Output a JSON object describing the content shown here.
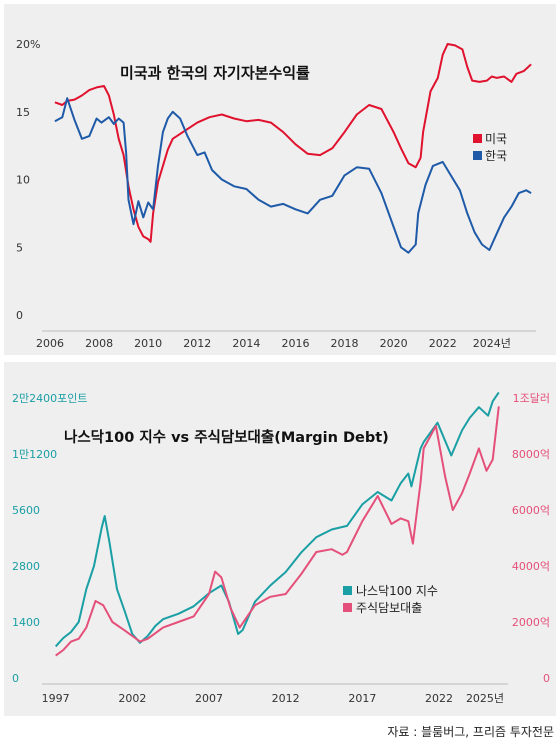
{
  "chart_data": [
    {
      "type": "line",
      "title": "미국과 한국의 자기자본수익률",
      "xlabel": "",
      "ylabel": "",
      "ylim": [
        0,
        20
      ],
      "xlim": [
        2006,
        2025.8
      ],
      "x_tick_labels": [
        "2006",
        "2008",
        "2010",
        "2012",
        "2014",
        "2016",
        "2018",
        "2020",
        "2022",
        "2024년"
      ],
      "y_tick_labels": [
        "0",
        "5",
        "10",
        "15",
        "20%"
      ],
      "legend": "right",
      "grid": false,
      "series": [
        {
          "name": "미국",
          "color": "#e0122e",
          "points": [
            [
              2006.2,
              15.7
            ],
            [
              2006.5,
              15.5
            ],
            [
              2006.7,
              15.8
            ],
            [
              2007.0,
              15.9
            ],
            [
              2007.3,
              16.2
            ],
            [
              2007.6,
              16.6
            ],
            [
              2007.9,
              16.8
            ],
            [
              2008.2,
              16.9
            ],
            [
              2008.4,
              16.2
            ],
            [
              2008.6,
              14.8
            ],
            [
              2008.8,
              13.0
            ],
            [
              2009.0,
              11.8
            ],
            [
              2009.2,
              9.5
            ],
            [
              2009.4,
              7.8
            ],
            [
              2009.6,
              6.5
            ],
            [
              2009.8,
              5.8
            ],
            [
              2010.0,
              5.6
            ],
            [
              2010.1,
              5.4
            ],
            [
              2010.2,
              7.5
            ],
            [
              2010.4,
              9.8
            ],
            [
              2010.6,
              11.0
            ],
            [
              2010.8,
              12.2
            ],
            [
              2011.0,
              13.0
            ],
            [
              2011.5,
              13.6
            ],
            [
              2012.0,
              14.2
            ],
            [
              2012.5,
              14.6
            ],
            [
              2013.0,
              14.8
            ],
            [
              2013.5,
              14.5
            ],
            [
              2014.0,
              14.3
            ],
            [
              2014.5,
              14.4
            ],
            [
              2015.0,
              14.2
            ],
            [
              2015.5,
              13.5
            ],
            [
              2016.0,
              12.6
            ],
            [
              2016.5,
              11.9
            ],
            [
              2017.0,
              11.8
            ],
            [
              2017.5,
              12.3
            ],
            [
              2018.0,
              13.5
            ],
            [
              2018.5,
              14.8
            ],
            [
              2019.0,
              15.5
            ],
            [
              2019.5,
              15.2
            ],
            [
              2020.0,
              13.5
            ],
            [
              2020.3,
              12.3
            ],
            [
              2020.6,
              11.2
            ],
            [
              2020.9,
              10.9
            ],
            [
              2021.1,
              11.6
            ],
            [
              2021.2,
              13.5
            ],
            [
              2021.5,
              16.5
            ],
            [
              2021.8,
              17.5
            ],
            [
              2022.0,
              19.2
            ],
            [
              2022.2,
              20.0
            ],
            [
              2022.5,
              19.9
            ],
            [
              2022.8,
              19.6
            ],
            [
              2023.0,
              18.3
            ],
            [
              2023.2,
              17.3
            ],
            [
              2023.5,
              17.2
            ],
            [
              2023.8,
              17.3
            ],
            [
              2024.0,
              17.6
            ],
            [
              2024.2,
              17.5
            ],
            [
              2024.5,
              17.6
            ],
            [
              2024.8,
              17.2
            ],
            [
              2025.0,
              17.8
            ],
            [
              2025.3,
              18.0
            ],
            [
              2025.6,
              18.5
            ]
          ]
        },
        {
          "name": "한국",
          "color": "#1e5aa8",
          "points": [
            [
              2006.2,
              14.3
            ],
            [
              2006.5,
              14.6
            ],
            [
              2006.7,
              16.0
            ],
            [
              2007.0,
              14.4
            ],
            [
              2007.3,
              13.0
            ],
            [
              2007.6,
              13.2
            ],
            [
              2007.9,
              14.5
            ],
            [
              2008.1,
              14.2
            ],
            [
              2008.4,
              14.6
            ],
            [
              2008.6,
              14.1
            ],
            [
              2008.8,
              14.5
            ],
            [
              2009.0,
              14.2
            ],
            [
              2009.1,
              12.0
            ],
            [
              2009.2,
              8.5
            ],
            [
              2009.4,
              6.7
            ],
            [
              2009.6,
              8.4
            ],
            [
              2009.8,
              7.2
            ],
            [
              2010.0,
              8.3
            ],
            [
              2010.2,
              7.8
            ],
            [
              2010.4,
              11.0
            ],
            [
              2010.6,
              13.5
            ],
            [
              2010.8,
              14.5
            ],
            [
              2011.0,
              15.0
            ],
            [
              2011.3,
              14.5
            ],
            [
              2011.6,
              13.2
            ],
            [
              2012.0,
              11.8
            ],
            [
              2012.3,
              12.0
            ],
            [
              2012.6,
              10.7
            ],
            [
              2013.0,
              10.0
            ],
            [
              2013.5,
              9.5
            ],
            [
              2014.0,
              9.3
            ],
            [
              2014.5,
              8.5
            ],
            [
              2015.0,
              8.0
            ],
            [
              2015.5,
              8.2
            ],
            [
              2016.0,
              7.8
            ],
            [
              2016.5,
              7.5
            ],
            [
              2017.0,
              8.5
            ],
            [
              2017.5,
              8.8
            ],
            [
              2018.0,
              10.3
            ],
            [
              2018.5,
              10.9
            ],
            [
              2019.0,
              10.8
            ],
            [
              2019.5,
              9.0
            ],
            [
              2020.0,
              6.5
            ],
            [
              2020.3,
              5.0
            ],
            [
              2020.6,
              4.6
            ],
            [
              2020.9,
              5.2
            ],
            [
              2021.0,
              7.5
            ],
            [
              2021.3,
              9.6
            ],
            [
              2021.6,
              11.0
            ],
            [
              2022.0,
              11.3
            ],
            [
              2022.3,
              10.4
            ],
            [
              2022.7,
              9.2
            ],
            [
              2023.0,
              7.5
            ],
            [
              2023.3,
              6.1
            ],
            [
              2023.6,
              5.2
            ],
            [
              2023.9,
              4.8
            ],
            [
              2024.2,
              6.0
            ],
            [
              2024.5,
              7.2
            ],
            [
              2024.8,
              8.0
            ],
            [
              2025.1,
              9.0
            ],
            [
              2025.4,
              9.2
            ],
            [
              2025.6,
              9.0
            ]
          ]
        }
      ]
    },
    {
      "type": "line",
      "title": "나스닥100 지수 vs 주식담보대출(Margin Debt)",
      "xlabel": "",
      "ylabel": "",
      "xlim": [
        1996.5,
        2026.5
      ],
      "y_left_scale": "log2",
      "y_left_ticks": [
        0,
        1400,
        2800,
        5600,
        11200,
        22400
      ],
      "y_left_tick_labels": [
        "0",
        "1400",
        "2800",
        "5600",
        "1만1200",
        "2만2400포인트"
      ],
      "y_right_ticks": [
        0,
        2000,
        4000,
        6000,
        8000,
        10000
      ],
      "y_right_tick_labels": [
        "0",
        "2000억",
        "4000억",
        "6000억",
        "8000억",
        "1조달러"
      ],
      "x_tick_labels": [
        "1997",
        "2002",
        "2007",
        "2012",
        "2017",
        "2022",
        "2025년"
      ],
      "legend": "right",
      "grid": false,
      "series": [
        {
          "name": "나스닥100 지수",
          "color": "#1a9fa4",
          "axis": "left",
          "points": [
            [
              1997,
              790
            ],
            [
              1997.5,
              1000
            ],
            [
              1998,
              1150
            ],
            [
              1998.5,
              1400
            ],
            [
              1999,
              2100
            ],
            [
              1999.5,
              2800
            ],
            [
              2000,
              4500
            ],
            [
              2000.2,
              5200
            ],
            [
              2000.5,
              3800
            ],
            [
              2001,
              2100
            ],
            [
              2001.5,
              1600
            ],
            [
              2002,
              1100
            ],
            [
              2002.5,
              880
            ],
            [
              2003,
              1050
            ],
            [
              2003.5,
              1300
            ],
            [
              2004,
              1450
            ],
            [
              2005,
              1550
            ],
            [
              2006,
              1700
            ],
            [
              2007,
              2000
            ],
            [
              2007.8,
              2200
            ],
            [
              2008.3,
              1800
            ],
            [
              2008.9,
              1100
            ],
            [
              2009.2,
              1200
            ],
            [
              2010,
              1800
            ],
            [
              2011,
              2200
            ],
            [
              2012,
              2600
            ],
            [
              2013,
              3300
            ],
            [
              2014,
              4000
            ],
            [
              2015,
              4400
            ],
            [
              2016,
              4600
            ],
            [
              2017,
              6000
            ],
            [
              2018,
              7000
            ],
            [
              2018.9,
              6300
            ],
            [
              2019.5,
              7800
            ],
            [
              2020,
              8800
            ],
            [
              2020.2,
              7500
            ],
            [
              2020.8,
              12000
            ],
            [
              2021,
              13000
            ],
            [
              2021.9,
              16500
            ],
            [
              2022.8,
              11000
            ],
            [
              2023.5,
              15000
            ],
            [
              2024,
              17500
            ],
            [
              2024.6,
              20000
            ],
            [
              2025.2,
              18000
            ],
            [
              2025.5,
              21500
            ],
            [
              2025.9,
              24000
            ]
          ]
        },
        {
          "name": "주식담보대출",
          "color": "#e5507a",
          "axis": "right",
          "points": [
            [
              1997,
              800
            ],
            [
              1997.5,
              1000
            ],
            [
              1998,
              1300
            ],
            [
              1998.5,
              1400
            ],
            [
              1999,
              1800
            ],
            [
              1999.6,
              2750
            ],
            [
              2000.1,
              2600
            ],
            [
              2000.7,
              2000
            ],
            [
              2001.5,
              1700
            ],
            [
              2002,
              1500
            ],
            [
              2002.5,
              1300
            ],
            [
              2003,
              1400
            ],
            [
              2004,
              1800
            ],
            [
              2005,
              2000
            ],
            [
              2006,
              2200
            ],
            [
              2007,
              3000
            ],
            [
              2007.4,
              3800
            ],
            [
              2007.8,
              3600
            ],
            [
              2008.4,
              2500
            ],
            [
              2009,
              1800
            ],
            [
              2009.5,
              2200
            ],
            [
              2010,
              2600
            ],
            [
              2011,
              2900
            ],
            [
              2012,
              3000
            ],
            [
              2013,
              3700
            ],
            [
              2014,
              4500
            ],
            [
              2015,
              4600
            ],
            [
              2015.7,
              4400
            ],
            [
              2016,
              4500
            ],
            [
              2017,
              5600
            ],
            [
              2018,
              6500
            ],
            [
              2018.9,
              5500
            ],
            [
              2019.5,
              5700
            ],
            [
              2020,
              5600
            ],
            [
              2020.3,
              4800
            ],
            [
              2020.8,
              7000
            ],
            [
              2021,
              8200
            ],
            [
              2021.8,
              9000
            ],
            [
              2022.4,
              7200
            ],
            [
              2022.9,
              6000
            ],
            [
              2023.5,
              6600
            ],
            [
              2024,
              7300
            ],
            [
              2024.6,
              8200
            ],
            [
              2025.1,
              7400
            ],
            [
              2025.5,
              7800
            ],
            [
              2025.9,
              9700
            ]
          ]
        }
      ]
    }
  ],
  "source_text": "자료 : 블룸버그, 프리즘 투자전문"
}
